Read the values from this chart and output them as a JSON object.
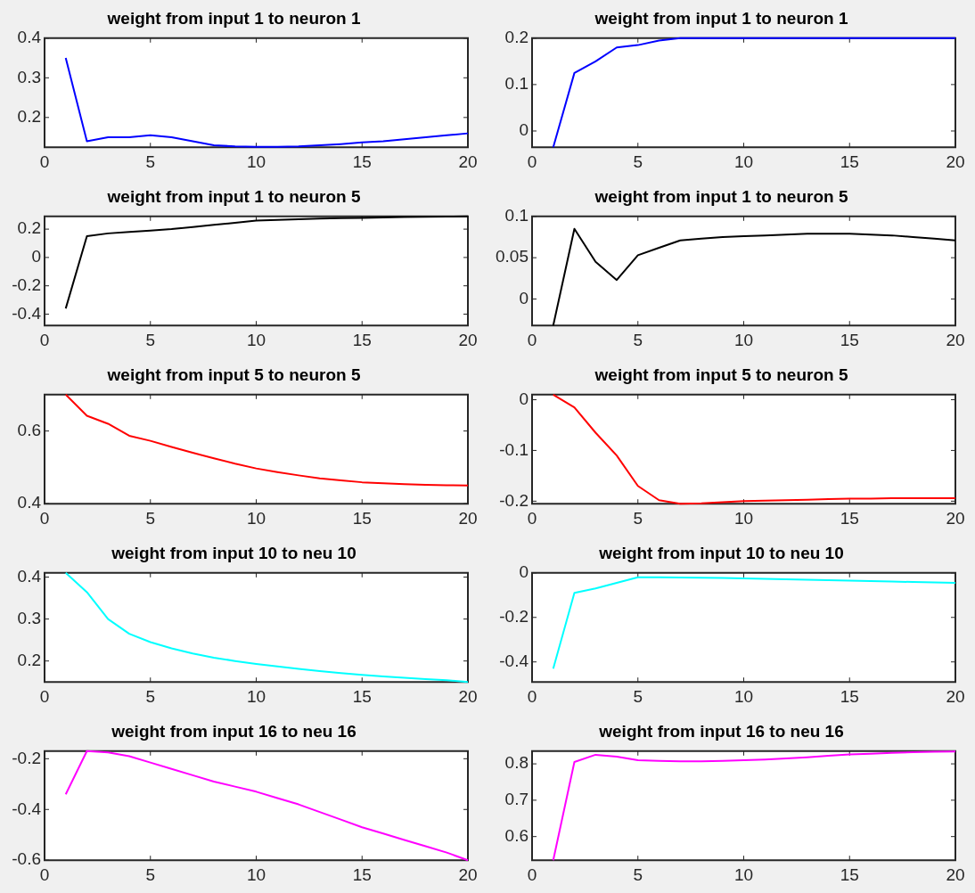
{
  "chart_data": [
    {
      "type": "line",
      "title": "weight from input 1 to neuron 1",
      "x": [
        1,
        2,
        3,
        4,
        5,
        6,
        7,
        8,
        9,
        10,
        11,
        12,
        13,
        14,
        15,
        16,
        17,
        18,
        19,
        20
      ],
      "xlim": [
        0,
        20
      ],
      "xticks": [
        0,
        5,
        10,
        15,
        20
      ],
      "ylim": [
        0.125,
        0.4
      ],
      "yticks": [
        0.2,
        0.3,
        0.4
      ],
      "series": [
        {
          "color": "#0000ff",
          "values": [
            0.35,
            0.14,
            0.15,
            0.15,
            0.155,
            0.15,
            0.14,
            0.13,
            0.127,
            0.126,
            0.126,
            0.127,
            0.13,
            0.133,
            0.137,
            0.14,
            0.145,
            0.15,
            0.155,
            0.16
          ]
        }
      ]
    },
    {
      "type": "line",
      "title": "weight from input 1 to neuron 1",
      "x": [
        1,
        2,
        3,
        4,
        5,
        6,
        7,
        8,
        9,
        10,
        11,
        12,
        13,
        14,
        15,
        16,
        17,
        18,
        19,
        20
      ],
      "xlim": [
        0,
        20
      ],
      "xticks": [
        0,
        5,
        10,
        15,
        20
      ],
      "ylim": [
        -0.035,
        0.2
      ],
      "yticks": [
        0,
        0.1,
        0.2
      ],
      "series": [
        {
          "color": "#0000ff",
          "values": [
            -0.035,
            0.125,
            0.15,
            0.18,
            0.185,
            0.195,
            0.2,
            0.2,
            0.2,
            0.2,
            0.2,
            0.2,
            0.2,
            0.2,
            0.2,
            0.2,
            0.2,
            0.2,
            0.2,
            0.2
          ]
        }
      ]
    },
    {
      "type": "line",
      "title": "weight from input 1 to neuron 5",
      "x": [
        1,
        2,
        3,
        4,
        5,
        6,
        7,
        8,
        9,
        10,
        11,
        12,
        13,
        14,
        15,
        16,
        17,
        18,
        19,
        20
      ],
      "xlim": [
        0,
        20
      ],
      "xticks": [
        0,
        5,
        10,
        15,
        20
      ],
      "ylim": [
        -0.48,
        0.29
      ],
      "yticks": [
        -0.4,
        -0.2,
        0,
        0.2
      ],
      "series": [
        {
          "color": "#000000",
          "values": [
            -0.36,
            0.15,
            0.17,
            0.18,
            0.19,
            0.2,
            0.215,
            0.23,
            0.245,
            0.26,
            0.265,
            0.27,
            0.275,
            0.278,
            0.28,
            0.283,
            0.285,
            0.287,
            0.288,
            0.29
          ]
        }
      ]
    },
    {
      "type": "line",
      "title": "weight from input 1 to neuron 5",
      "x": [
        1,
        2,
        3,
        4,
        5,
        6,
        7,
        8,
        9,
        10,
        11,
        12,
        13,
        14,
        15,
        16,
        17,
        18,
        19,
        20
      ],
      "xlim": [
        0,
        20
      ],
      "xticks": [
        0,
        5,
        10,
        15,
        20
      ],
      "ylim": [
        -0.032,
        0.1
      ],
      "yticks": [
        0,
        0.05,
        0.1
      ],
      "series": [
        {
          "color": "#000000",
          "values": [
            -0.032,
            0.085,
            0.045,
            0.023,
            0.053,
            0.062,
            0.071,
            0.073,
            0.075,
            0.076,
            0.077,
            0.078,
            0.079,
            0.079,
            0.079,
            0.078,
            0.077,
            0.075,
            0.073,
            0.071
          ]
        }
      ]
    },
    {
      "type": "line",
      "title": "weight from input 5 to neuron 5",
      "x": [
        1,
        2,
        3,
        4,
        5,
        6,
        7,
        8,
        9,
        10,
        11,
        12,
        13,
        14,
        15,
        16,
        17,
        18,
        19,
        20
      ],
      "xlim": [
        0,
        20
      ],
      "xticks": [
        0,
        5,
        10,
        15,
        20
      ],
      "ylim": [
        0.4,
        0.7
      ],
      "yticks": [
        0.4,
        0.6
      ],
      "series": [
        {
          "color": "#ff0000",
          "values": [
            0.7,
            0.642,
            0.62,
            0.587,
            0.573,
            0.556,
            0.54,
            0.525,
            0.51,
            0.497,
            0.487,
            0.478,
            0.47,
            0.464,
            0.459,
            0.456,
            0.454,
            0.452,
            0.451,
            0.45
          ]
        }
      ]
    },
    {
      "type": "line",
      "title": "weight from input 5 to neuron 5",
      "x": [
        1,
        2,
        3,
        4,
        5,
        6,
        7,
        8,
        9,
        10,
        11,
        12,
        13,
        14,
        15,
        16,
        17,
        18,
        19,
        20
      ],
      "xlim": [
        0,
        20
      ],
      "xticks": [
        0,
        5,
        10,
        15,
        20
      ],
      "ylim": [
        -0.205,
        0.01
      ],
      "yticks": [
        -0.2,
        -0.1,
        0
      ],
      "series": [
        {
          "color": "#ff0000",
          "values": [
            0.01,
            -0.015,
            -0.065,
            -0.11,
            -0.17,
            -0.198,
            -0.205,
            -0.204,
            -0.202,
            -0.2,
            -0.199,
            -0.198,
            -0.197,
            -0.196,
            -0.195,
            -0.195,
            -0.194,
            -0.194,
            -0.194,
            -0.194
          ]
        }
      ]
    },
    {
      "type": "line",
      "title": "weight from input 10 to neu 10",
      "x": [
        1,
        2,
        3,
        4,
        5,
        6,
        7,
        8,
        9,
        10,
        11,
        12,
        13,
        14,
        15,
        16,
        17,
        18,
        19,
        20
      ],
      "xlim": [
        0,
        20
      ],
      "xticks": [
        0,
        5,
        10,
        15,
        20
      ],
      "ylim": [
        0.15,
        0.41
      ],
      "yticks": [
        0.2,
        0.3,
        0.4
      ],
      "series": [
        {
          "color": "#00ffff",
          "values": [
            0.41,
            0.364,
            0.3,
            0.265,
            0.245,
            0.23,
            0.218,
            0.208,
            0.2,
            0.193,
            0.187,
            0.181,
            0.176,
            0.171,
            0.167,
            0.163,
            0.16,
            0.157,
            0.154,
            0.15
          ]
        }
      ]
    },
    {
      "type": "line",
      "title": "weight from input 10 to neu 10",
      "x": [
        1,
        2,
        3,
        4,
        5,
        6,
        7,
        8,
        9,
        10,
        11,
        12,
        13,
        14,
        15,
        16,
        17,
        18,
        19,
        20
      ],
      "xlim": [
        0,
        20
      ],
      "xticks": [
        0,
        5,
        10,
        15,
        20
      ],
      "ylim": [
        -0.49,
        0
      ],
      "yticks": [
        -0.4,
        -0.2,
        0
      ],
      "series": [
        {
          "color": "#00ffff",
          "values": [
            -0.43,
            -0.09,
            -0.07,
            -0.045,
            -0.02,
            -0.02,
            -0.021,
            -0.022,
            -0.023,
            -0.025,
            -0.027,
            -0.029,
            -0.031,
            -0.033,
            -0.035,
            -0.037,
            -0.039,
            -0.041,
            -0.043,
            -0.045
          ]
        }
      ]
    },
    {
      "type": "line",
      "title": "weight from input 16 to neu 16",
      "x": [
        1,
        2,
        3,
        4,
        5,
        6,
        7,
        8,
        9,
        10,
        11,
        12,
        13,
        14,
        15,
        16,
        17,
        18,
        19,
        20
      ],
      "xlim": [
        0,
        20
      ],
      "xticks": [
        0,
        5,
        10,
        15,
        20
      ],
      "ylim": [
        -0.6,
        -0.17
      ],
      "yticks": [
        -0.6,
        -0.4,
        -0.2
      ],
      "series": [
        {
          "color": "#ff00ff",
          "values": [
            -0.34,
            -0.17,
            -0.175,
            -0.19,
            -0.215,
            -0.24,
            -0.265,
            -0.29,
            -0.31,
            -0.33,
            -0.355,
            -0.38,
            -0.41,
            -0.44,
            -0.47,
            -0.495,
            -0.52,
            -0.545,
            -0.57,
            -0.6
          ]
        }
      ]
    },
    {
      "type": "line",
      "title": "weight from input 16 to neu 16",
      "x": [
        1,
        2,
        3,
        4,
        5,
        6,
        7,
        8,
        9,
        10,
        11,
        12,
        13,
        14,
        15,
        16,
        17,
        18,
        19,
        20
      ],
      "xlim": [
        0,
        20
      ],
      "xticks": [
        0,
        5,
        10,
        15,
        20
      ],
      "ylim": [
        0.535,
        0.835
      ],
      "yticks": [
        0.6,
        0.7,
        0.8
      ],
      "series": [
        {
          "color": "#ff00ff",
          "values": [
            0.535,
            0.805,
            0.825,
            0.82,
            0.81,
            0.808,
            0.807,
            0.807,
            0.808,
            0.81,
            0.812,
            0.815,
            0.818,
            0.822,
            0.826,
            0.828,
            0.83,
            0.832,
            0.833,
            0.834
          ]
        }
      ]
    }
  ]
}
